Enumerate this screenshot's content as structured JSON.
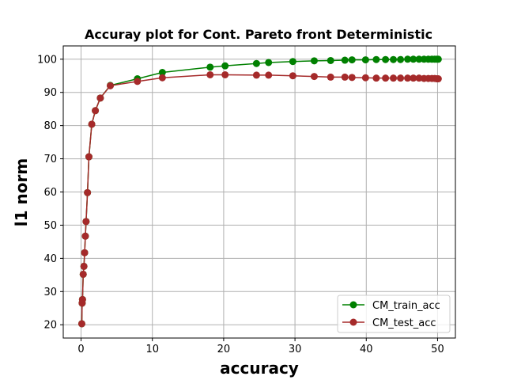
{
  "chart_data": {
    "type": "line",
    "title": "Accuray plot for Cont. Pareto front Deterministic",
    "xlabel": "accuracy",
    "ylabel": "l1 norm",
    "xlim": [
      -2.5,
      52.5
    ],
    "ylim": [
      16.0,
      104.0
    ],
    "xticks": [
      0,
      10,
      20,
      30,
      40,
      50
    ],
    "yticks": [
      20,
      30,
      40,
      50,
      60,
      70,
      80,
      90,
      100
    ],
    "grid": true,
    "legend_position": "lower-right",
    "series": [
      {
        "name": "CM_train_acc",
        "color": "#008000",
        "x": [
          0.1,
          0.15,
          0.2,
          0.3,
          0.4,
          0.5,
          0.6,
          0.7,
          0.9,
          1.1,
          1.5,
          2.0,
          2.7,
          4.1,
          7.9,
          11.4,
          18.1,
          20.2,
          24.6,
          26.3,
          29.7,
          32.7,
          35.0,
          37.0,
          38.0,
          39.9,
          41.4,
          42.7,
          43.8,
          44.8,
          45.8,
          46.6,
          47.4,
          48.1,
          48.7,
          49.2,
          49.6,
          49.9,
          50.1
        ],
        "y": [
          20.3,
          26.5,
          27.6,
          35.2,
          37.6,
          41.7,
          46.7,
          51.1,
          59.8,
          70.6,
          80.4,
          84.5,
          88.3,
          92.1,
          94.1,
          96.0,
          97.6,
          98.0,
          98.7,
          99.0,
          99.3,
          99.5,
          99.6,
          99.7,
          99.8,
          99.8,
          99.9,
          99.9,
          99.9,
          99.9,
          100.0,
          100.0,
          100.0,
          100.0,
          100.0,
          100.0,
          100.0,
          100.0,
          100.0
        ]
      },
      {
        "name": "CM_test_acc",
        "color": "#a52a2a",
        "x": [
          0.1,
          0.15,
          0.2,
          0.3,
          0.4,
          0.5,
          0.6,
          0.7,
          0.9,
          1.1,
          1.5,
          2.0,
          2.7,
          4.1,
          7.9,
          11.4,
          18.1,
          20.2,
          24.6,
          26.3,
          29.7,
          32.7,
          35.0,
          37.0,
          38.0,
          39.9,
          41.4,
          42.7,
          43.8,
          44.8,
          45.8,
          46.6,
          47.4,
          48.1,
          48.7,
          49.2,
          49.6,
          49.9,
          50.1
        ],
        "y": [
          20.3,
          26.5,
          27.6,
          35.2,
          37.6,
          41.7,
          46.7,
          51.1,
          59.8,
          70.6,
          80.4,
          84.5,
          88.3,
          92.0,
          93.3,
          94.4,
          95.3,
          95.3,
          95.2,
          95.2,
          95.0,
          94.8,
          94.6,
          94.6,
          94.5,
          94.4,
          94.3,
          94.3,
          94.3,
          94.3,
          94.3,
          94.3,
          94.3,
          94.2,
          94.2,
          94.2,
          94.2,
          94.1,
          94.1
        ]
      }
    ]
  }
}
